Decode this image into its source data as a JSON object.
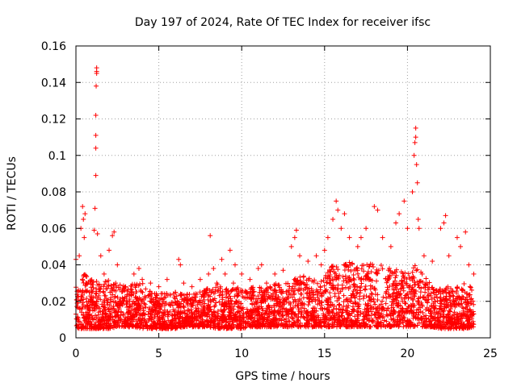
{
  "chart_data": {
    "type": "scatter",
    "title": "Day 197 of 2024, Rate Of TEC Index for receiver ifsc",
    "xlabel": "GPS time / hours",
    "ylabel": "ROTI / TECUs",
    "xlim": [
      0,
      25
    ],
    "ylim": [
      0,
      0.16
    ],
    "xticks": [
      0,
      5,
      10,
      15,
      20,
      25
    ],
    "xtick_labels": [
      "0",
      "5",
      "10",
      "15",
      "20",
      "25"
    ],
    "yticks": [
      0,
      0.02,
      0.04,
      0.06,
      0.08,
      0.1,
      0.12,
      0.14,
      0.16
    ],
    "ytick_labels": [
      "0",
      "0.02",
      "0.04",
      "0.06",
      "0.08",
      "0.1",
      "0.12",
      "0.14",
      "0.16"
    ],
    "grid": true,
    "marker": "+",
    "color": "#ff0000",
    "series": [
      {
        "name": "ROTI",
        "x": [
          0.0,
          0.2,
          0.3,
          0.4,
          0.45,
          0.5,
          0.55,
          0.6,
          0.8,
          1.0,
          1.1,
          1.15,
          1.2,
          1.2,
          1.2,
          1.2,
          1.22,
          1.25,
          1.25,
          1.25,
          1.3,
          1.5,
          1.7,
          2.0,
          2.2,
          2.3,
          2.4,
          2.5,
          3.0,
          3.5,
          3.8,
          4.0,
          4.5,
          5.0,
          5.5,
          6.0,
          6.2,
          6.3,
          6.5,
          7.0,
          7.5,
          8.0,
          8.1,
          8.3,
          8.5,
          8.8,
          9.0,
          9.3,
          9.5,
          9.6,
          10.0,
          10.5,
          11.0,
          11.2,
          11.5,
          12.0,
          12.5,
          13.0,
          13.2,
          13.3,
          13.5,
          14.0,
          14.5,
          14.8,
          15.0,
          15.2,
          15.5,
          15.7,
          15.8,
          16.0,
          16.2,
          16.5,
          17.0,
          17.2,
          17.5,
          18.0,
          18.2,
          18.5,
          19.0,
          19.3,
          19.5,
          19.8,
          20.0,
          20.3,
          20.4,
          20.45,
          20.5,
          20.5,
          20.55,
          20.6,
          20.65,
          20.7,
          21.0,
          21.5,
          22.0,
          22.2,
          22.3,
          22.5,
          23.0,
          23.2,
          23.5,
          23.7,
          24.0
        ],
        "y": [
          0.043,
          0.045,
          0.06,
          0.072,
          0.065,
          0.055,
          0.068,
          0.03,
          0.025,
          0.02,
          0.059,
          0.071,
          0.089,
          0.104,
          0.111,
          0.122,
          0.138,
          0.145,
          0.146,
          0.148,
          0.057,
          0.045,
          0.035,
          0.048,
          0.056,
          0.058,
          0.03,
          0.04,
          0.028,
          0.035,
          0.038,
          0.032,
          0.03,
          0.028,
          0.032,
          0.025,
          0.043,
          0.04,
          0.03,
          0.028,
          0.032,
          0.035,
          0.056,
          0.038,
          0.03,
          0.043,
          0.035,
          0.048,
          0.03,
          0.04,
          0.035,
          0.032,
          0.038,
          0.04,
          0.03,
          0.035,
          0.037,
          0.05,
          0.055,
          0.059,
          0.045,
          0.042,
          0.045,
          0.04,
          0.048,
          0.055,
          0.065,
          0.075,
          0.07,
          0.06,
          0.068,
          0.055,
          0.05,
          0.055,
          0.06,
          0.072,
          0.07,
          0.055,
          0.05,
          0.063,
          0.068,
          0.075,
          0.06,
          0.08,
          0.1,
          0.107,
          0.115,
          0.11,
          0.095,
          0.085,
          0.065,
          0.06,
          0.045,
          0.042,
          0.06,
          0.063,
          0.067,
          0.045,
          0.055,
          0.05,
          0.058,
          0.04,
          0.035
        ],
        "baseline": {
          "x": [
            0,
            0.5,
            1,
            1.5,
            2,
            2.5,
            3,
            3.5,
            4,
            4.5,
            5,
            5.5,
            6,
            6.5,
            7,
            7.5,
            8,
            8.5,
            9,
            9.5,
            10,
            10.5,
            11,
            11.5,
            12,
            12.5,
            13,
            13.5,
            14,
            14.5,
            15,
            15.5,
            16,
            16.5,
            17,
            17.5,
            18,
            18.5,
            19,
            19.5,
            20,
            20.5,
            21,
            21.5,
            22,
            22.5,
            23,
            23.5,
            24
          ],
          "low": [
            0.005,
            0.005,
            0.005,
            0.005,
            0.005,
            0.006,
            0.006,
            0.006,
            0.005,
            0.005,
            0.005,
            0.005,
            0.005,
            0.006,
            0.006,
            0.006,
            0.006,
            0.005,
            0.005,
            0.005,
            0.005,
            0.006,
            0.006,
            0.006,
            0.006,
            0.006,
            0.006,
            0.006,
            0.006,
            0.006,
            0.006,
            0.006,
            0.006,
            0.006,
            0.006,
            0.006,
            0.006,
            0.006,
            0.006,
            0.006,
            0.006,
            0.006,
            0.006,
            0.006,
            0.005,
            0.005,
            0.005,
            0.005,
            0.006
          ],
          "high": [
            0.03,
            0.035,
            0.032,
            0.03,
            0.032,
            0.03,
            0.028,
            0.03,
            0.03,
            0.026,
            0.024,
            0.025,
            0.025,
            0.025,
            0.024,
            0.026,
            0.028,
            0.03,
            0.028,
            0.027,
            0.028,
            0.028,
            0.028,
            0.027,
            0.03,
            0.03,
            0.032,
            0.035,
            0.033,
            0.032,
            0.034,
            0.04,
            0.04,
            0.042,
            0.04,
            0.04,
            0.042,
            0.04,
            0.038,
            0.037,
            0.038,
            0.04,
            0.035,
            0.03,
            0.028,
            0.028,
            0.028,
            0.03,
            0.03
          ]
        }
      }
    ]
  }
}
